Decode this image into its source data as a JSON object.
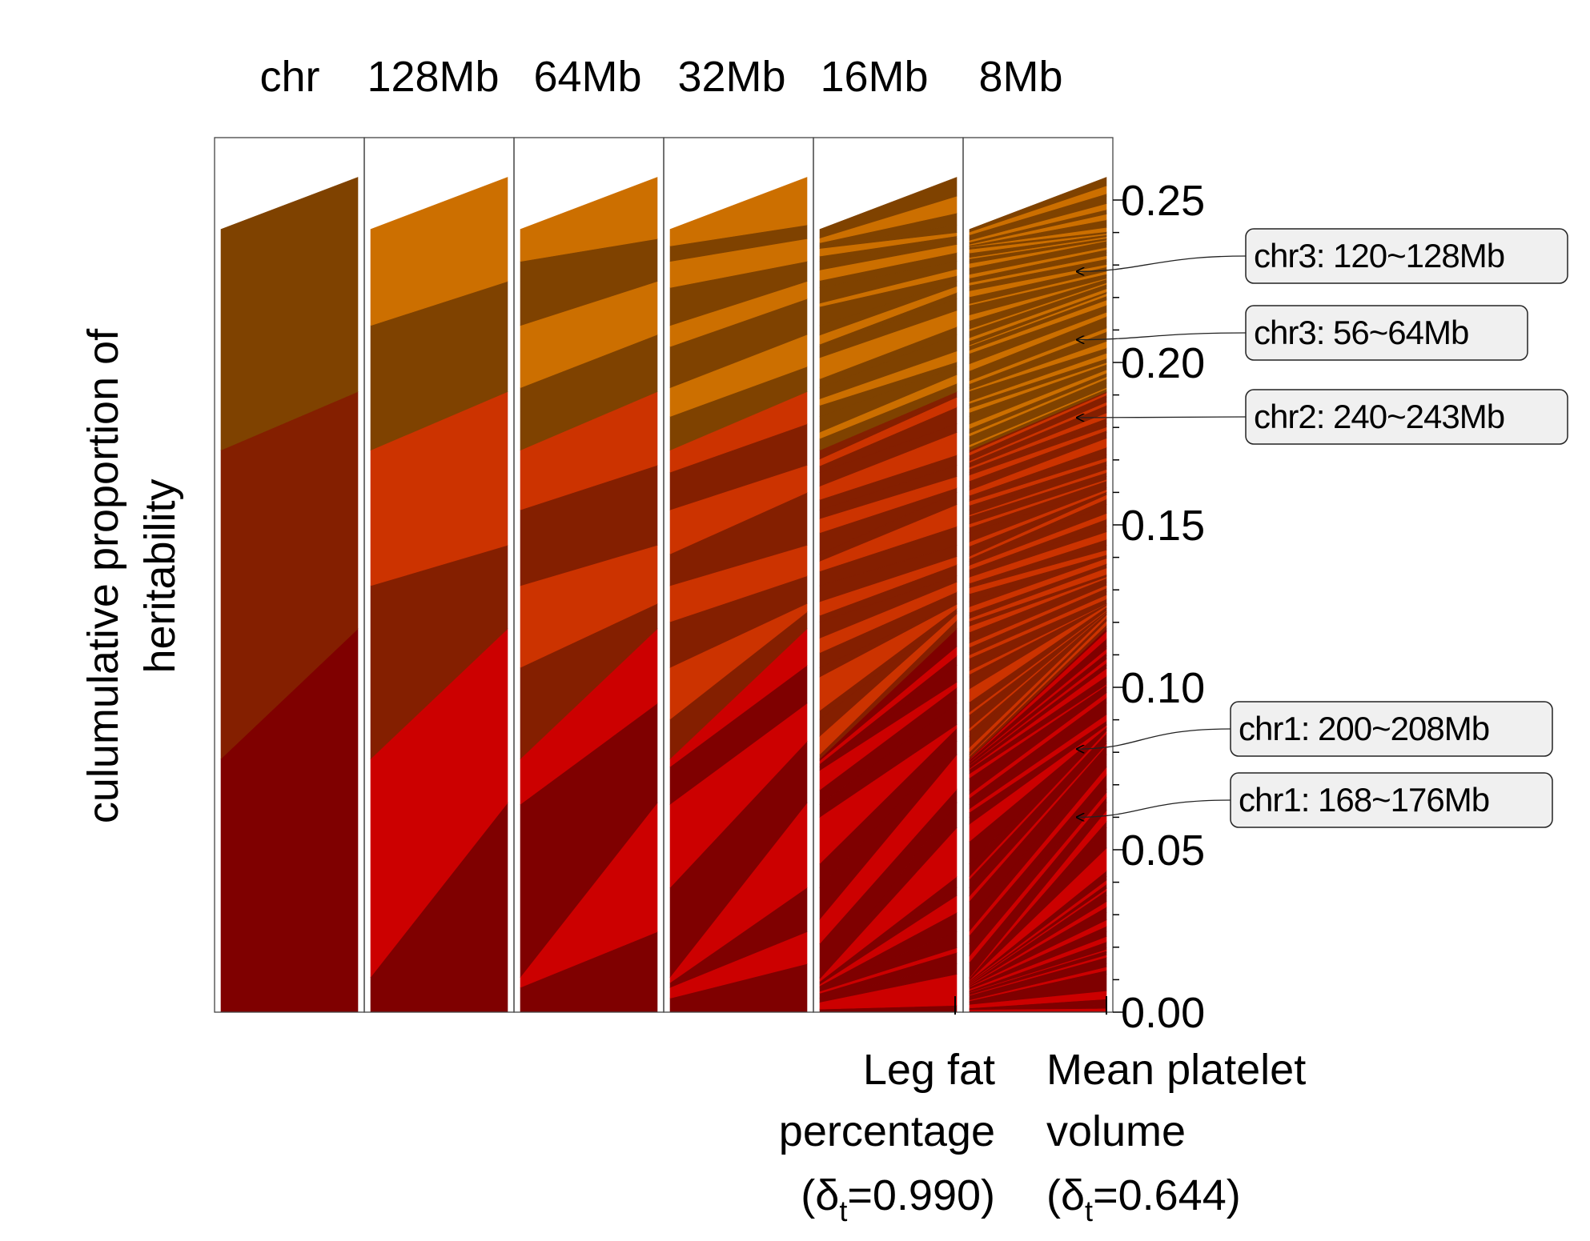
{
  "chart_data": {
    "type": "area",
    "column_headers": [
      "chr",
      "128Mb",
      "64Mb",
      "32Mb",
      "16Mb",
      "8Mb"
    ],
    "y_axis": {
      "label_line1": "culumulative proportion of",
      "label_line2": "heritability",
      "ticks": [
        "0.00",
        "0.05",
        "0.10",
        "0.15",
        "0.20",
        "0.25"
      ],
      "tick_values": [
        0,
        0.05,
        0.1,
        0.15,
        0.2,
        0.25
      ],
      "ylim": [
        0,
        0.26
      ]
    },
    "traits": [
      {
        "name_line1": "Leg fat",
        "name_line2": "percentage",
        "delta_prefix": "(δ",
        "delta_sub": "t",
        "delta_value": "=0.990)",
        "total": 0.241
      },
      {
        "name_line1": "Mean platelet",
        "name_line2": "volume",
        "delta_prefix": "(δ",
        "delta_sub": "t",
        "delta_value": "=0.644)",
        "total": 0.257
      }
    ],
    "chromosomes": [
      {
        "name": "chr1",
        "leg_fat": 0.078,
        "platelet": 0.118
      },
      {
        "name": "chr2",
        "leg_fat": 0.095,
        "platelet": 0.073
      },
      {
        "name": "chr3",
        "leg_fat": 0.068,
        "platelet": 0.066
      }
    ],
    "colors": {
      "chr1_a": "#7f0000",
      "chr1_b": "#cc0000",
      "chr2_a": "#841f00",
      "chr2_b": "#cc3300",
      "chr3_a": "#7f4200",
      "chr3_b": "#cc6f00"
    },
    "annotations": [
      {
        "label": "chr3: 120~128Mb",
        "value": 0.228
      },
      {
        "label": "chr3: 56~64Mb",
        "value": 0.207
      },
      {
        "label": "chr2: 240~243Mb",
        "value": 0.183
      },
      {
        "label": "chr1: 200~208Mb",
        "value": 0.081
      },
      {
        "label": "chr1: 168~176Mb",
        "value": 0.06
      }
    ]
  }
}
